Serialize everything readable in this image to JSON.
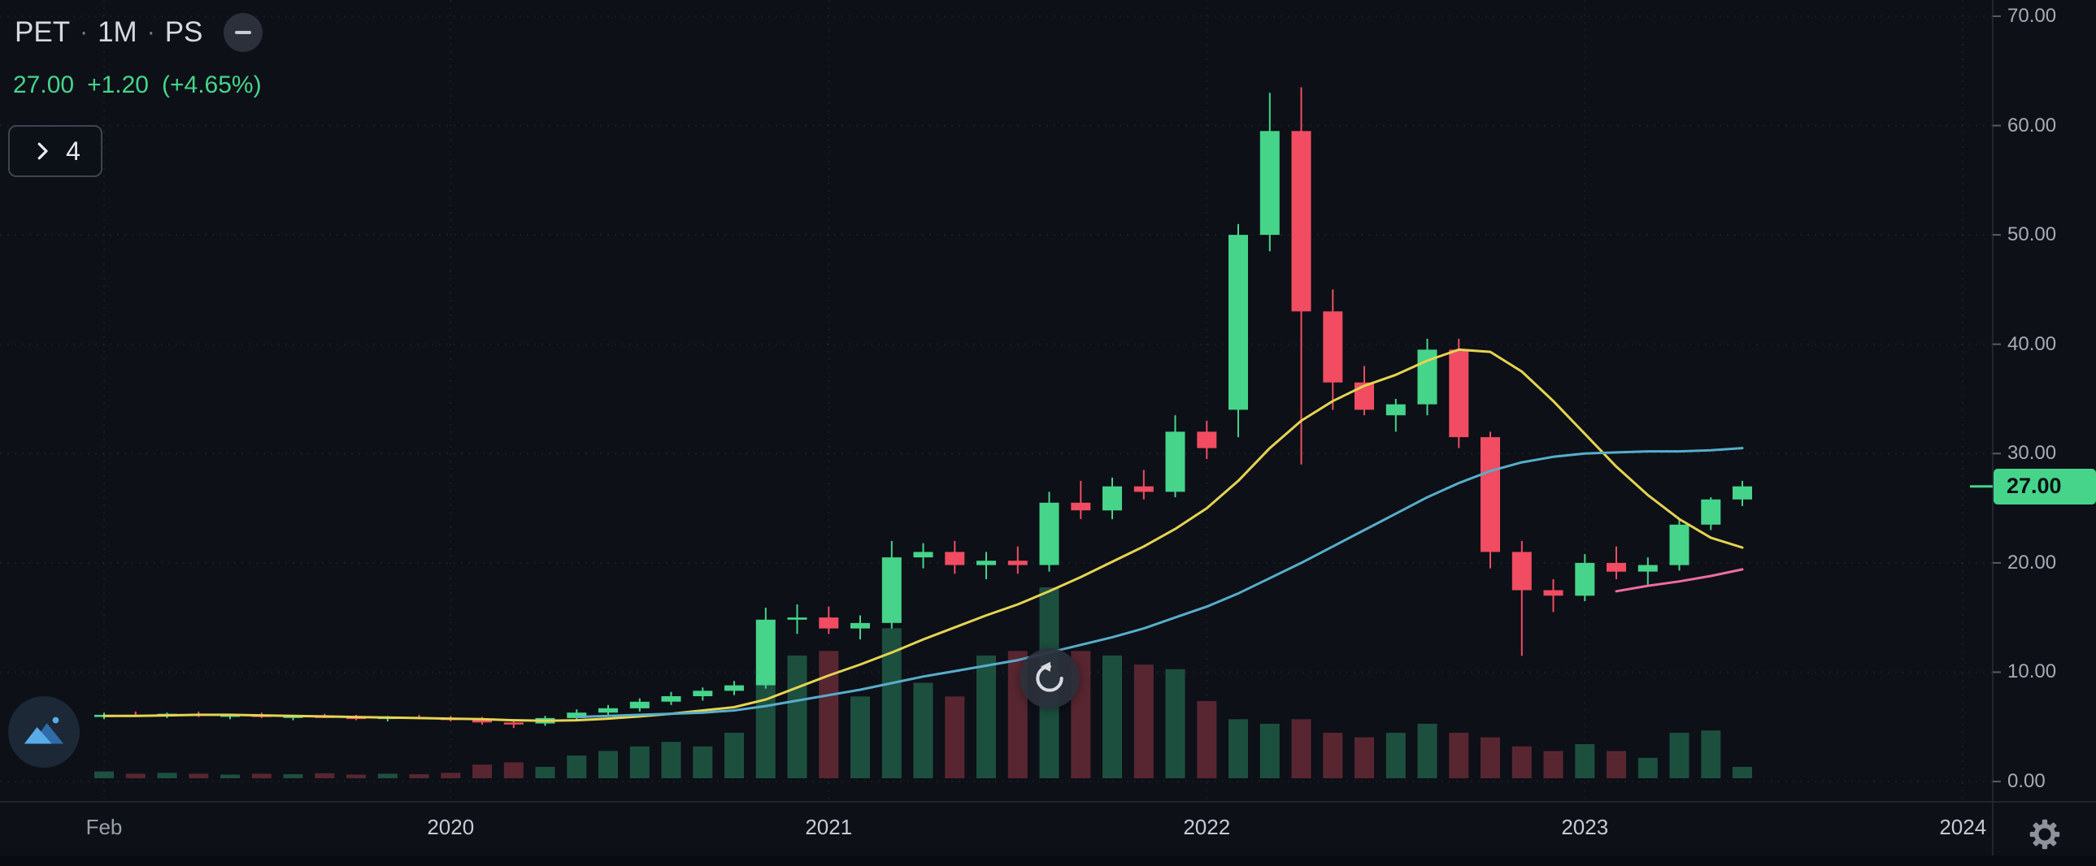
{
  "header": {
    "symbol": "PET",
    "separator": "·",
    "timeframe": "1M",
    "exchange": "PS",
    "price": "27.00",
    "change": "+1.20",
    "change_percent": "(+4.65%)"
  },
  "object_tree": {
    "count": "4"
  },
  "price_scale": {
    "labels": [
      "70.00",
      "60.00",
      "50.00",
      "40.00",
      "30.00",
      "20.00",
      "10.00",
      "0.00"
    ],
    "current": "27.00"
  },
  "colors": {
    "background": "#0d1017",
    "up": "#45d48a",
    "down": "#f14c62",
    "volume_up": "#1d4f3e",
    "volume_down": "#582631",
    "axis_border": "#262c38",
    "tick": "#565b67",
    "axis_text": "#a6abb5",
    "price_tag_text": "#0c1016"
  },
  "chart_data": {
    "type": "candlestick",
    "title": "PET 1M PS",
    "timeframe": "1M",
    "ylim": [
      0,
      70
    ],
    "grid": true,
    "legend_position": "top-left",
    "x_tick_labels": [
      {
        "label": "Feb",
        "index": 0
      },
      {
        "label": "2020",
        "index": 11
      },
      {
        "label": "2021",
        "index": 23
      },
      {
        "label": "2022",
        "index": 35
      },
      {
        "label": "2023",
        "index": 47
      },
      {
        "label": "2024",
        "index": 59
      }
    ],
    "candles": [
      {
        "t": "2019-02",
        "o": 5.9,
        "h": 6.3,
        "l": 5.7,
        "c": 6.1,
        "v": 1.5
      },
      {
        "t": "2019-03",
        "o": 6.1,
        "h": 6.4,
        "l": 5.9,
        "c": 6.0,
        "v": 1.0
      },
      {
        "t": "2019-04",
        "o": 6.0,
        "h": 6.3,
        "l": 5.8,
        "c": 6.2,
        "v": 1.2
      },
      {
        "t": "2019-05",
        "o": 6.2,
        "h": 6.4,
        "l": 5.9,
        "c": 6.0,
        "v": 1.0
      },
      {
        "t": "2019-06",
        "o": 6.0,
        "h": 6.2,
        "l": 5.7,
        "c": 6.1,
        "v": 0.8
      },
      {
        "t": "2019-07",
        "o": 6.1,
        "h": 6.3,
        "l": 5.8,
        "c": 5.9,
        "v": 1.0
      },
      {
        "t": "2019-08",
        "o": 5.9,
        "h": 6.1,
        "l": 5.6,
        "c": 6.0,
        "v": 0.9
      },
      {
        "t": "2019-09",
        "o": 6.0,
        "h": 6.2,
        "l": 5.8,
        "c": 5.9,
        "v": 1.1
      },
      {
        "t": "2019-10",
        "o": 5.9,
        "h": 6.1,
        "l": 5.6,
        "c": 5.8,
        "v": 0.8
      },
      {
        "t": "2019-11",
        "o": 5.8,
        "h": 6.0,
        "l": 5.5,
        "c": 5.9,
        "v": 1.0
      },
      {
        "t": "2019-12",
        "o": 5.9,
        "h": 6.1,
        "l": 5.7,
        "c": 5.8,
        "v": 0.9
      },
      {
        "t": "2020-01",
        "o": 5.8,
        "h": 6.0,
        "l": 5.5,
        "c": 5.7,
        "v": 1.2
      },
      {
        "t": "2020-02",
        "o": 5.7,
        "h": 5.9,
        "l": 5.2,
        "c": 5.4,
        "v": 3.0
      },
      {
        "t": "2020-03",
        "o": 5.4,
        "h": 5.7,
        "l": 4.9,
        "c": 5.3,
        "v": 3.5
      },
      {
        "t": "2020-04",
        "o": 5.3,
        "h": 6.0,
        "l": 5.1,
        "c": 5.8,
        "v": 2.5
      },
      {
        "t": "2020-05",
        "o": 5.8,
        "h": 6.6,
        "l": 5.6,
        "c": 6.3,
        "v": 5.0
      },
      {
        "t": "2020-06",
        "o": 6.3,
        "h": 7.0,
        "l": 6.0,
        "c": 6.7,
        "v": 6.0
      },
      {
        "t": "2020-07",
        "o": 6.7,
        "h": 7.6,
        "l": 6.4,
        "c": 7.3,
        "v": 7.0
      },
      {
        "t": "2020-08",
        "o": 7.3,
        "h": 8.2,
        "l": 7.0,
        "c": 7.8,
        "v": 8.0
      },
      {
        "t": "2020-09",
        "o": 7.8,
        "h": 8.6,
        "l": 7.4,
        "c": 8.3,
        "v": 7.0
      },
      {
        "t": "2020-10",
        "o": 8.3,
        "h": 9.2,
        "l": 7.9,
        "c": 8.8,
        "v": 10.0
      },
      {
        "t": "2020-11",
        "o": 8.8,
        "h": 15.9,
        "l": 8.5,
        "c": 14.8,
        "v": 22.0
      },
      {
        "t": "2020-12",
        "o": 14.8,
        "h": 16.2,
        "l": 13.5,
        "c": 15.0,
        "v": 27.0
      },
      {
        "t": "2021-01",
        "o": 15.0,
        "h": 16.0,
        "l": 13.5,
        "c": 14.0,
        "v": 28.0
      },
      {
        "t": "2021-02",
        "o": 14.0,
        "h": 15.2,
        "l": 13.0,
        "c": 14.5,
        "v": 18.0
      },
      {
        "t": "2021-03",
        "o": 14.5,
        "h": 22.0,
        "l": 14.0,
        "c": 20.5,
        "v": 33.0
      },
      {
        "t": "2021-04",
        "o": 20.5,
        "h": 21.8,
        "l": 19.5,
        "c": 21.0,
        "v": 21.0
      },
      {
        "t": "2021-05",
        "o": 21.0,
        "h": 22.0,
        "l": 19.0,
        "c": 19.8,
        "v": 18.0
      },
      {
        "t": "2021-06",
        "o": 19.8,
        "h": 21.0,
        "l": 18.5,
        "c": 20.2,
        "v": 27.0
      },
      {
        "t": "2021-07",
        "o": 20.2,
        "h": 21.5,
        "l": 19.0,
        "c": 19.8,
        "v": 28.0
      },
      {
        "t": "2021-08",
        "o": 19.8,
        "h": 26.5,
        "l": 19.2,
        "c": 25.5,
        "v": 42.0
      },
      {
        "t": "2021-09",
        "o": 25.5,
        "h": 27.5,
        "l": 24.0,
        "c": 24.8,
        "v": 28.0
      },
      {
        "t": "2021-10",
        "o": 24.8,
        "h": 27.8,
        "l": 24.0,
        "c": 27.0,
        "v": 27.0
      },
      {
        "t": "2021-11",
        "o": 27.0,
        "h": 28.5,
        "l": 25.8,
        "c": 26.5,
        "v": 25.0
      },
      {
        "t": "2021-12",
        "o": 26.5,
        "h": 33.5,
        "l": 26.0,
        "c": 32.0,
        "v": 24.0
      },
      {
        "t": "2022-01",
        "o": 32.0,
        "h": 33.0,
        "l": 29.5,
        "c": 30.5,
        "v": 17.0
      },
      {
        "t": "2022-02",
        "o": 34.0,
        "h": 51.0,
        "l": 31.5,
        "c": 50.0,
        "v": 13.0
      },
      {
        "t": "2022-03",
        "o": 50.0,
        "h": 63.0,
        "l": 48.5,
        "c": 59.5,
        "v": 12.0
      },
      {
        "t": "2022-04",
        "o": 59.5,
        "h": 63.5,
        "l": 29.0,
        "c": 43.0,
        "v": 13.0
      },
      {
        "t": "2022-05",
        "o": 43.0,
        "h": 45.0,
        "l": 34.0,
        "c": 36.5,
        "v": 10.0
      },
      {
        "t": "2022-06",
        "o": 36.5,
        "h": 38.0,
        "l": 33.5,
        "c": 34.0,
        "v": 9.0
      },
      {
        "t": "2022-07",
        "o": 33.5,
        "h": 35.0,
        "l": 32.0,
        "c": 34.5,
        "v": 10.0
      },
      {
        "t": "2022-08",
        "o": 34.5,
        "h": 40.5,
        "l": 33.5,
        "c": 39.5,
        "v": 12.0
      },
      {
        "t": "2022-09",
        "o": 39.5,
        "h": 40.5,
        "l": 30.5,
        "c": 31.5,
        "v": 10.0
      },
      {
        "t": "2022-10",
        "o": 31.5,
        "h": 32.0,
        "l": 19.5,
        "c": 21.0,
        "v": 9.0
      },
      {
        "t": "2022-11",
        "o": 21.0,
        "h": 22.0,
        "l": 11.5,
        "c": 17.5,
        "v": 7.0
      },
      {
        "t": "2022-12",
        "o": 17.5,
        "h": 18.5,
        "l": 15.5,
        "c": 17.0,
        "v": 6.0
      },
      {
        "t": "2023-01",
        "o": 17.0,
        "h": 20.8,
        "l": 16.5,
        "c": 20.0,
        "v": 7.5
      },
      {
        "t": "2023-02",
        "o": 20.0,
        "h": 21.5,
        "l": 18.5,
        "c": 19.2,
        "v": 6.0
      },
      {
        "t": "2023-03",
        "o": 19.2,
        "h": 20.5,
        "l": 18.0,
        "c": 19.8,
        "v": 4.5
      },
      {
        "t": "2023-04",
        "o": 19.8,
        "h": 24.0,
        "l": 19.3,
        "c": 23.5,
        "v": 10.0
      },
      {
        "t": "2023-05",
        "o": 23.5,
        "h": 26.0,
        "l": 23.0,
        "c": 25.8,
        "v": 10.5
      },
      {
        "t": "2023-06",
        "o": 25.8,
        "h": 27.5,
        "l": 25.2,
        "c": 27.0,
        "v": 2.5
      }
    ],
    "series": [
      {
        "name": "ma-yellow",
        "color": "#e5d452",
        "start_index": 0,
        "values": [
          6.0,
          6.0,
          6.05,
          6.1,
          6.1,
          6.05,
          6.0,
          5.95,
          5.9,
          5.85,
          5.8,
          5.75,
          5.7,
          5.6,
          5.55,
          5.6,
          5.75,
          5.95,
          6.2,
          6.5,
          6.8,
          7.5,
          8.6,
          9.7,
          10.7,
          11.8,
          13.0,
          14.1,
          15.2,
          16.2,
          17.4,
          18.7,
          20.1,
          21.5,
          23.1,
          25.0,
          27.5,
          30.5,
          33.0,
          34.8,
          36.2,
          37.2,
          38.5,
          39.5,
          39.3,
          37.5,
          34.8,
          31.8,
          28.8,
          26.2,
          24.0,
          22.3,
          21.4
        ]
      },
      {
        "name": "ma-blue",
        "color": "#57aecb",
        "start_index": 15,
        "values": [
          5.9,
          6.0,
          6.1,
          6.2,
          6.3,
          6.5,
          6.9,
          7.4,
          7.9,
          8.4,
          9.0,
          9.6,
          10.1,
          10.6,
          11.1,
          11.8,
          12.5,
          13.2,
          14.0,
          15.0,
          16.0,
          17.2,
          18.6,
          20.0,
          21.5,
          23.0,
          24.5,
          26.0,
          27.3,
          28.4,
          29.2,
          29.7,
          30.0,
          30.1,
          30.2,
          30.2,
          30.3,
          30.5
        ]
      },
      {
        "name": "ma-pink",
        "color": "#ef6da0",
        "start_index": 48,
        "values": [
          17.4,
          17.9,
          18.3,
          18.8,
          19.4
        ]
      }
    ]
  }
}
